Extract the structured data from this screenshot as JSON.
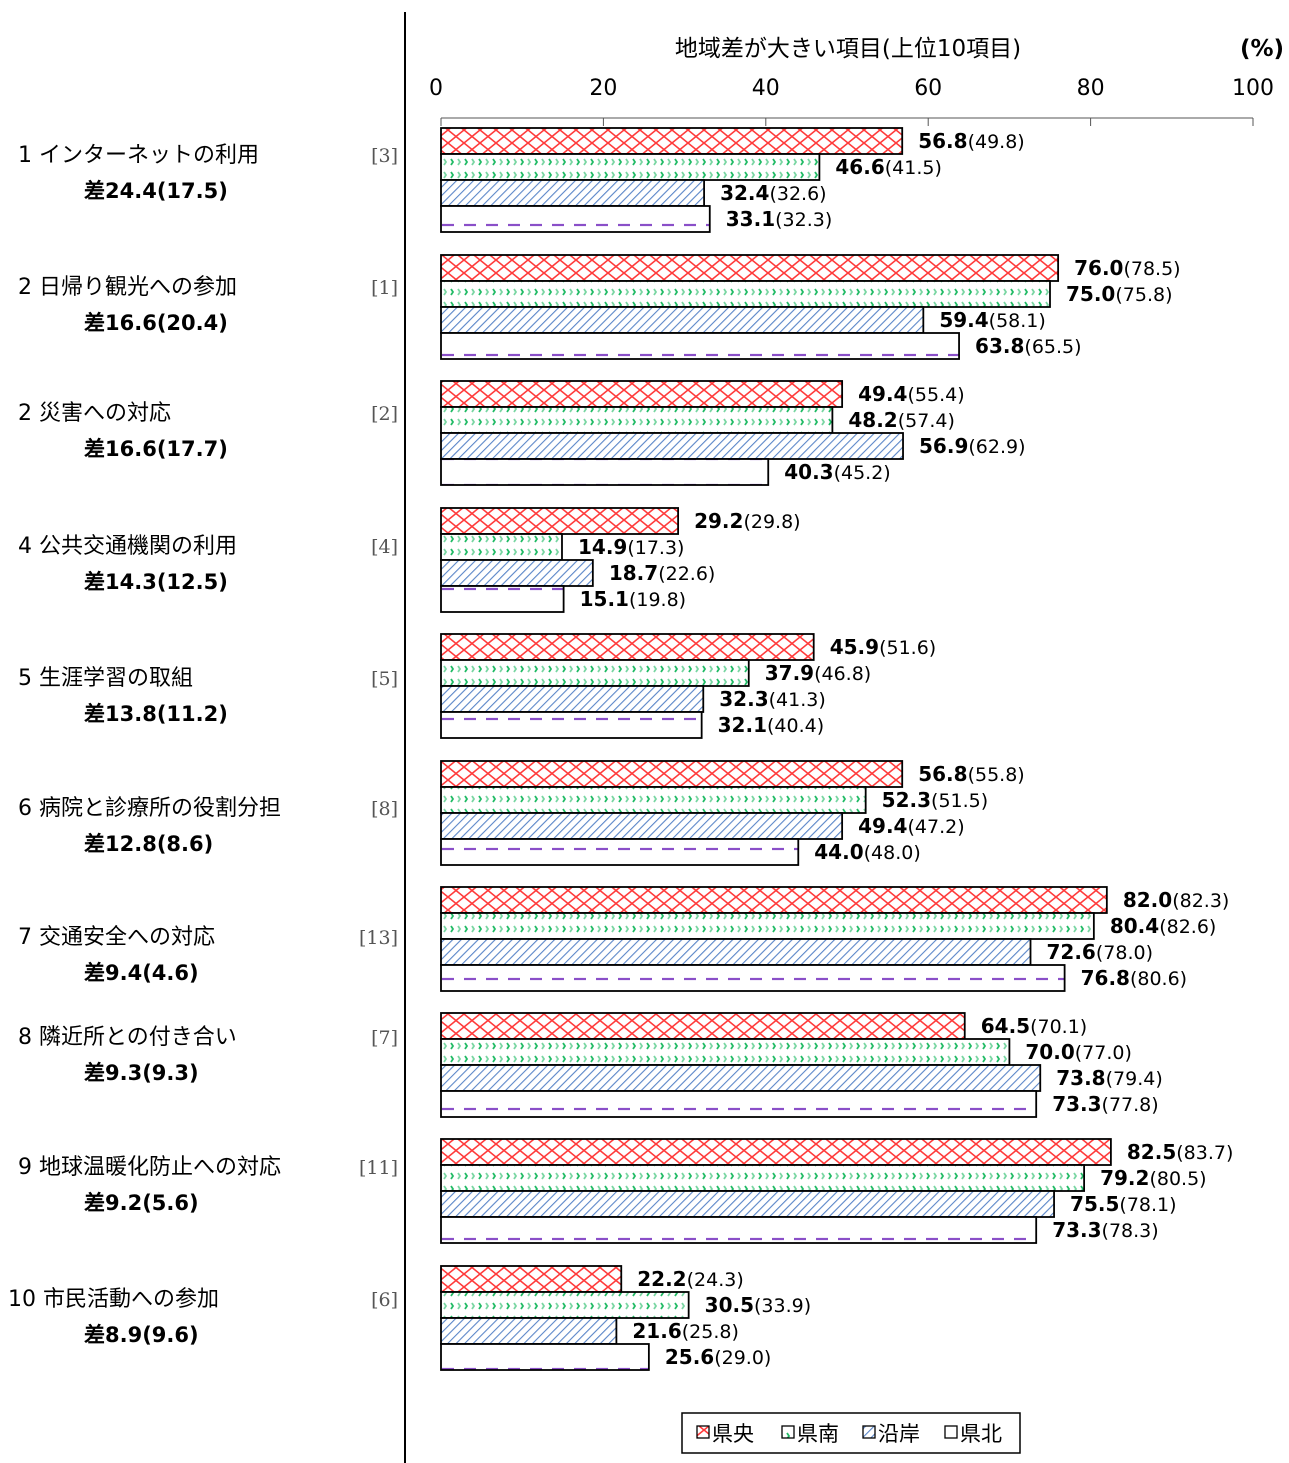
{
  "chart_data": {
    "type": "bar",
    "orientation": "horizontal",
    "title": "地域差が大きい項目(上位10項目)",
    "unit": "(%)",
    "xlim": [
      0,
      100
    ],
    "xticks": [
      "0",
      "20",
      "40",
      "60",
      "80",
      "100"
    ],
    "series": [
      {
        "name": "県央",
        "color": "#ff3b3b",
        "pattern": "crosshatch"
      },
      {
        "name": "県南",
        "color": "#22bb66",
        "pattern": "dots"
      },
      {
        "name": "沿岸",
        "color": "#5a86c8",
        "pattern": "diagonal"
      },
      {
        "name": "県北",
        "color": "#8a4fc8",
        "pattern": "dashes"
      }
    ],
    "categories": [
      {
        "label": "1 インターネットの利用",
        "diff": "差24.4(17.5)",
        "rank": "[3]",
        "values": [
          56.8,
          46.6,
          32.4,
          33.1
        ],
        "prev": [
          "(49.8)",
          "(41.5)",
          "(32.6)",
          "(32.3)"
        ],
        "vtext": [
          "56.8",
          "46.6",
          "32.4",
          "33.1"
        ]
      },
      {
        "label": "2 日帰り観光への参加",
        "diff": "差16.6(20.4)",
        "rank": "[1]",
        "values": [
          76.0,
          75.0,
          59.4,
          63.8
        ],
        "prev": [
          "(78.5)",
          "(75.8)",
          "(58.1)",
          "(65.5)"
        ],
        "vtext": [
          "76.0",
          "75.0",
          "59.4",
          "63.8"
        ]
      },
      {
        "label": "2 災害への対応",
        "diff": "差16.6(17.7)",
        "rank": "[2]",
        "values": [
          49.4,
          48.2,
          56.9,
          40.3
        ],
        "prev": [
          "(55.4)",
          "(57.4)",
          "(62.9)",
          "(45.2)"
        ],
        "vtext": [
          "49.4",
          "48.2",
          "56.9",
          "40.3"
        ]
      },
      {
        "label": "4 公共交通機関の利用",
        "diff": "差14.3(12.5)",
        "rank": "[4]",
        "values": [
          29.2,
          14.9,
          18.7,
          15.1
        ],
        "prev": [
          "(29.8)",
          "(17.3)",
          "(22.6)",
          "(19.8)"
        ],
        "vtext": [
          "29.2",
          "14.9",
          "18.7",
          "15.1"
        ]
      },
      {
        "label": "5 生涯学習の取組",
        "diff": "差13.8(11.2)",
        "rank": "[5]",
        "values": [
          45.9,
          37.9,
          32.3,
          32.1
        ],
        "prev": [
          "(51.6)",
          "(46.8)",
          "(41.3)",
          "(40.4)"
        ],
        "vtext": [
          "45.9",
          "37.9",
          "32.3",
          "32.1"
        ]
      },
      {
        "label": "6 病院と診療所の役割分担",
        "diff": "差12.8(8.6)",
        "rank": "[8]",
        "values": [
          56.8,
          52.3,
          49.4,
          44.0
        ],
        "prev": [
          "(55.8)",
          "(51.5)",
          "(47.2)",
          "(48.0)"
        ],
        "vtext": [
          "56.8",
          "52.3",
          "49.4",
          "44.0"
        ]
      },
      {
        "label": "7 交通安全への対応",
        "diff": "差9.4(4.6)",
        "rank": "[13]",
        "values": [
          82.0,
          80.4,
          72.6,
          76.8
        ],
        "prev": [
          "(82.3)",
          "(82.6)",
          "(78.0)",
          "(80.6)"
        ],
        "vtext": [
          "82.0",
          "80.4",
          "72.6",
          "76.8"
        ]
      },
      {
        "label": "8 隣近所との付き合い",
        "diff": "差9.3(9.3)",
        "rank": "[7]",
        "values": [
          64.5,
          70.0,
          73.8,
          73.3
        ],
        "prev": [
          "(70.1)",
          "(77.0)",
          "(79.4)",
          "(77.8)"
        ],
        "vtext": [
          "64.5",
          "70.0",
          "73.8",
          "73.3"
        ]
      },
      {
        "label": "9 地球温暖化防止への対応",
        "diff": "差9.2(5.6)",
        "rank": "[11]",
        "values": [
          82.5,
          79.2,
          75.5,
          73.3
        ],
        "prev": [
          "(83.7)",
          "(80.5)",
          "(78.1)",
          "(78.3)"
        ],
        "vtext": [
          "82.5",
          "79.2",
          "75.5",
          "73.3"
        ]
      },
      {
        "label": "10 市民活動への参加",
        "diff": "差8.9(9.6)",
        "rank": "[6]",
        "values": [
          22.2,
          30.5,
          21.6,
          25.6
        ],
        "prev": [
          "(24.3)",
          "(33.9)",
          "(25.8)",
          "(29.0)"
        ],
        "vtext": [
          "22.2",
          "30.5",
          "21.6",
          "25.6"
        ]
      }
    ]
  }
}
